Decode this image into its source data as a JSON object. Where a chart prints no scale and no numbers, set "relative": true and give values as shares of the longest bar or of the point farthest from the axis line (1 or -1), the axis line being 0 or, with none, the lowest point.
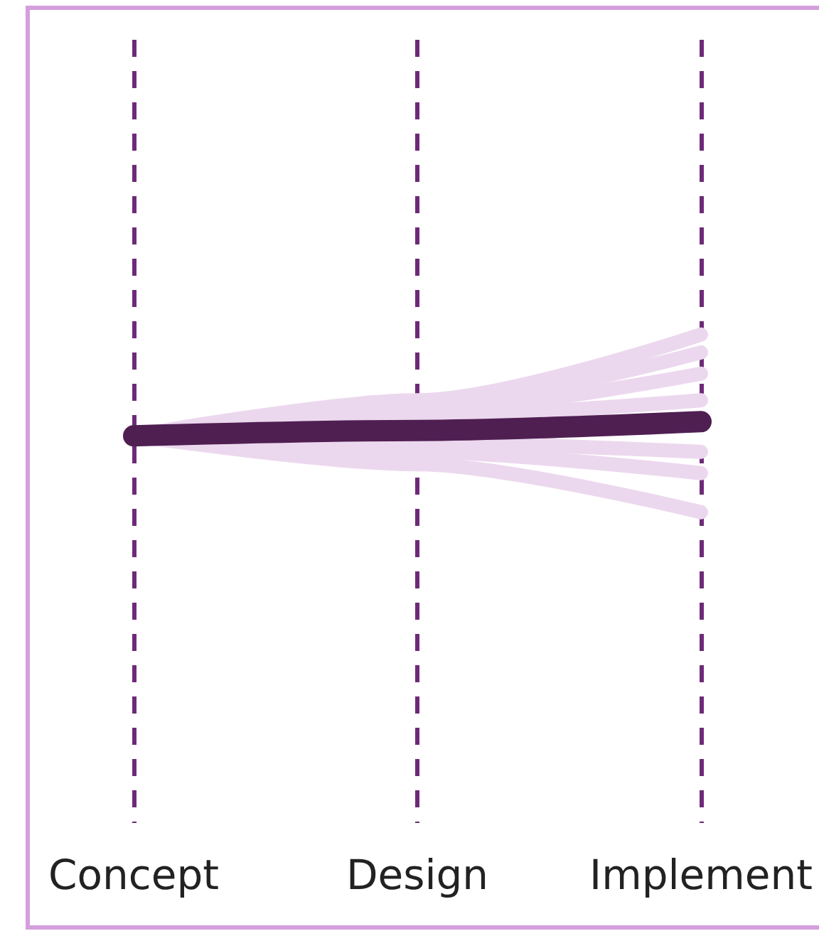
{
  "chart_data": {
    "type": "line",
    "relative": true,
    "categories": [
      "Concept",
      "Design",
      "Implement"
    ],
    "series": [
      {
        "color": "#ecd8ee",
        "values": [
          0.43,
          0.63,
          1
        ]
      },
      {
        "color": "#ecd8ee",
        "values": [
          0.43,
          0.6,
          0.9
        ]
      },
      {
        "color": "#ecd8ee",
        "values": [
          0.43,
          0.57,
          0.78
        ]
      },
      {
        "color": "#ecd8ee",
        "values": [
          0.43,
          0.54,
          0.63
        ]
      },
      {
        "color": "#ecd8ee",
        "values": [
          0.43,
          0.39,
          0.34
        ]
      },
      {
        "color": "#ecd8ee",
        "values": [
          0.43,
          0.34,
          0.22
        ]
      },
      {
        "color": "#ecd8ee",
        "values": [
          0.43,
          0.27,
          0
        ]
      },
      {
        "color": "#4f1f52",
        "values": [
          0.43,
          0.46,
          0.51
        ]
      }
    ],
    "grid": "x",
    "line_style": "solid"
  }
}
